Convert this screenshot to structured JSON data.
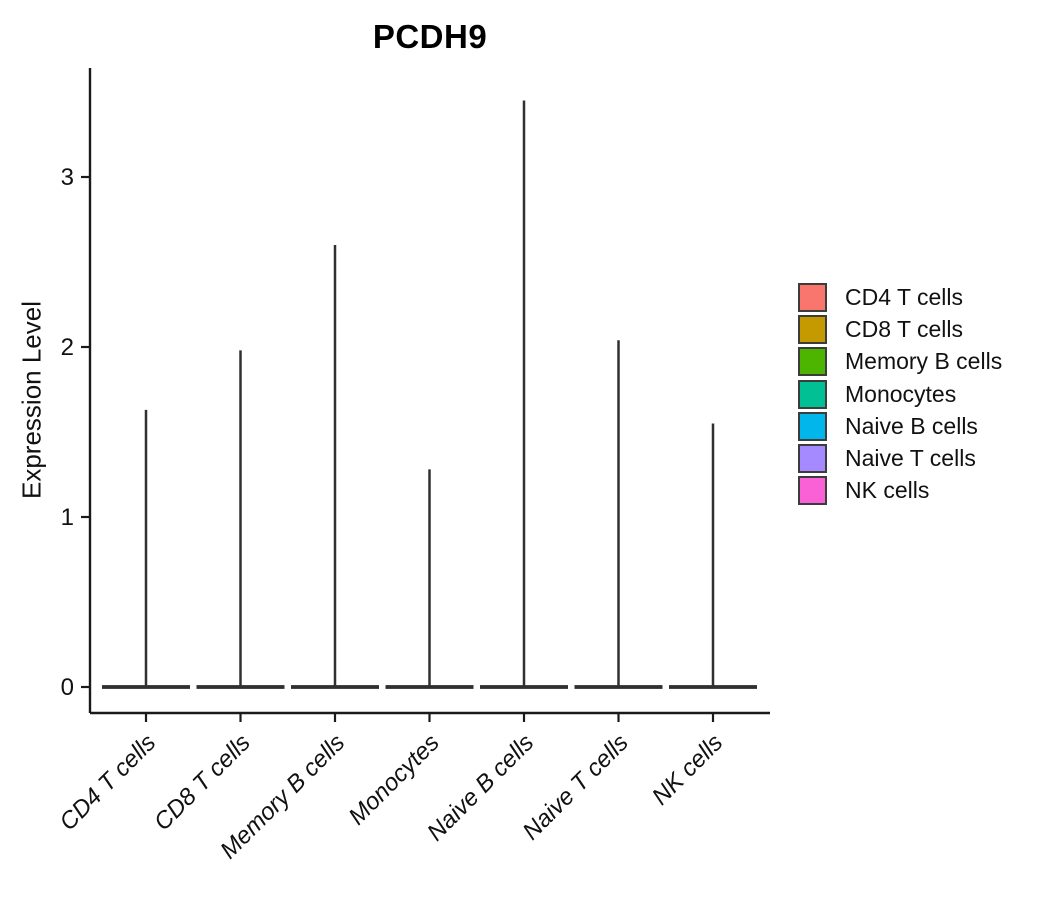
{
  "chart_data": {
    "type": "violin",
    "title": "PCDH9",
    "ylabel": "Expression Level",
    "xlabel": "",
    "categories": [
      "CD4 T cells",
      "CD8 T cells",
      "Memory B cells",
      "Monocytes",
      "Naive B cells",
      "Naive T cells",
      "NK cells"
    ],
    "colors": [
      "#F8766D",
      "#C49A00",
      "#4DB400",
      "#00C094",
      "#00B6EB",
      "#A58AFF",
      "#FB61D7"
    ],
    "series": [
      {
        "name": "CD4 T cells",
        "min": 0,
        "max": 1.63
      },
      {
        "name": "CD8 T cells",
        "min": 0,
        "max": 1.98
      },
      {
        "name": "Memory B cells",
        "min": 0,
        "max": 2.6
      },
      {
        "name": "Monocytes",
        "min": 0,
        "max": 1.28
      },
      {
        "name": "Naive B cells",
        "min": 0,
        "max": 3.45
      },
      {
        "name": "Naive T cells",
        "min": 0,
        "max": 2.04
      },
      {
        "name": "NK cells",
        "min": 0,
        "max": 1.55
      }
    ],
    "yticks": [
      0,
      1,
      2,
      3
    ],
    "ylim": [
      0,
      3.65
    ],
    "grid": "off",
    "legend_position": "right",
    "x_tick_label_angle_deg": 45,
    "x_tick_label_style": "italic",
    "outline_color": "#303030",
    "axis_color": "#1a1a1a"
  }
}
